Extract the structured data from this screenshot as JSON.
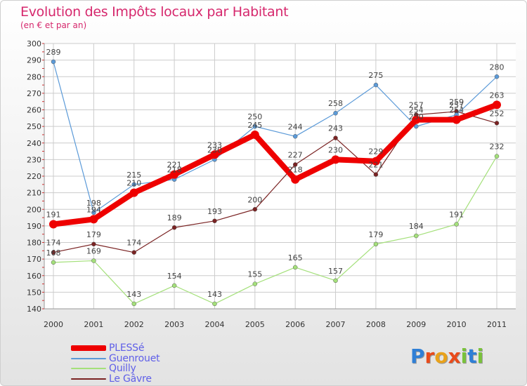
{
  "title": "Evolution des Impôts locaux par Habitant",
  "subtitle": "(en € et par an)",
  "brand": {
    "letters": [
      "P",
      "r",
      "o",
      "x",
      "i",
      "t",
      "i"
    ],
    "colors": [
      "#2f7fd6",
      "#e94b1b",
      "#e9a21b",
      "#e94b1b",
      "#79c23b",
      "#2f7fd6",
      "#79c23b"
    ]
  },
  "chart_data": {
    "type": "line",
    "title": "Evolution des Impôts locaux par Habitant",
    "ylabel": "(en € et par an)",
    "categories": [
      "2000",
      "2001",
      "2002",
      "2003",
      "2004",
      "2005",
      "2006",
      "2007",
      "2008",
      "2009",
      "2010",
      "2011"
    ],
    "ylim": [
      140,
      300
    ],
    "yticks": [
      "140",
      "150",
      "160",
      "170",
      "180",
      "190",
      "200",
      "210",
      "220",
      "230",
      "240",
      "250",
      "260",
      "270",
      "280",
      "290",
      "300"
    ],
    "series": [
      {
        "name": "PLESSé",
        "color": "#ee0000",
        "width": "thick",
        "values": [
          191,
          194,
          210,
          221,
          233,
          245,
          218,
          230,
          229,
          254,
          254,
          263
        ],
        "labels": [
          "191",
          "194",
          "210",
          "221",
          "233",
          "245",
          "218",
          "230",
          "229",
          "254",
          "254",
          "263"
        ]
      },
      {
        "name": "Guenrouet",
        "color": "#5b9ad8",
        "width": "thin",
        "values": [
          289,
          198,
          215,
          218,
          230,
          250,
          244,
          258,
          275,
          250,
          257,
          280
        ],
        "labels": [
          "289",
          "198",
          "215",
          "218",
          "230",
          "250",
          "244",
          "258",
          "275",
          "250",
          "257",
          "280"
        ]
      },
      {
        "name": "Quilly",
        "color": "#a4e07a",
        "width": "thin",
        "values": [
          168,
          169,
          143,
          154,
          143,
          155,
          165,
          157,
          179,
          184,
          191,
          232
        ],
        "labels": [
          "168",
          "169",
          "143",
          "154",
          "143",
          "155",
          "165",
          "157",
          "179",
          "184",
          "191",
          "232"
        ]
      },
      {
        "name": "Le Gâvre",
        "color": "#7a2323",
        "width": "thin",
        "values": [
          174,
          179,
          174,
          189,
          193,
          200,
          227,
          243,
          221,
          257,
          259,
          252
        ],
        "labels": [
          "174",
          "179",
          "174",
          "189",
          "193",
          "200",
          "227",
          "243",
          "221",
          "257",
          "259",
          "252"
        ]
      }
    ]
  }
}
